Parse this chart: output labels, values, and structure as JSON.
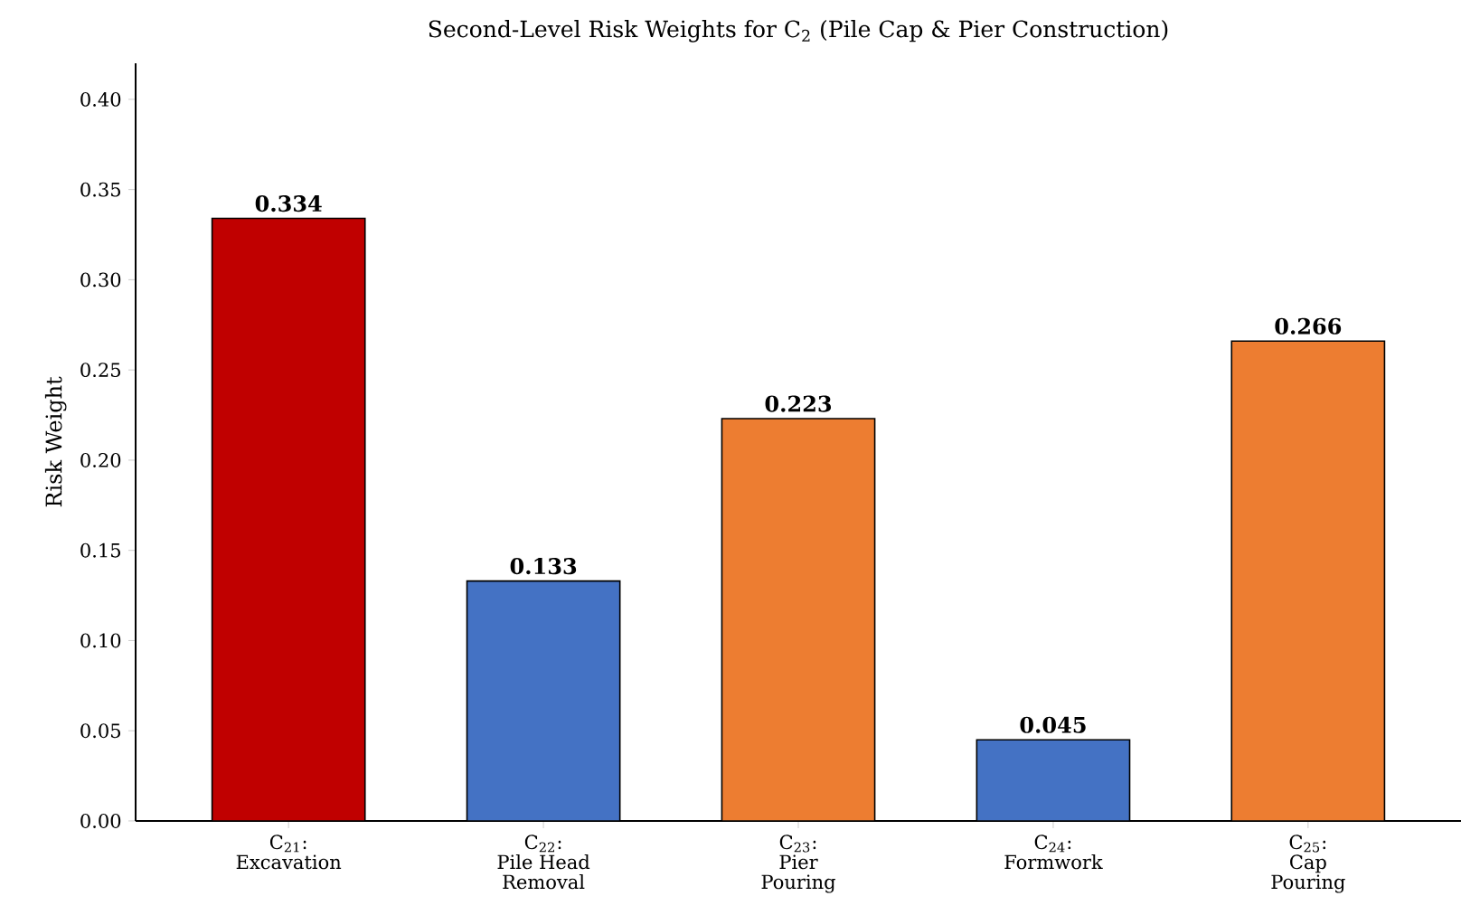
{
  "chart_data": {
    "type": "bar",
    "title": "Second-Level Risk Weights for C$_{2}$ (Pile Cap & Pier Construction)",
    "ylabel": "Risk Weight",
    "categories": [
      "C$_{21}$:\nExcavation",
      "C$_{22}$:\nPile Head\nRemoval",
      "C$_{23}$:\nPier\nPouring",
      "C$_{24}$:\nFormwork",
      "C$_{25}$:\nCap\nPouring"
    ],
    "values": [
      0.334,
      0.133,
      0.223,
      0.045,
      0.266
    ],
    "colors": [
      "#c00000",
      "#4472c4",
      "#ed7d31",
      "#4472c4",
      "#ed7d31"
    ],
    "ylim": [
      0,
      0.42
    ],
    "yticks": [
      {
        "value": 0,
        "label": "0.00"
      },
      {
        "value": 0.05,
        "label": "0.05"
      },
      {
        "value": 0.1,
        "label": "0.10"
      },
      {
        "value": 0.15,
        "label": "0.15"
      },
      {
        "value": 0.2,
        "label": "0.20"
      },
      {
        "value": 0.25,
        "label": "0.25"
      },
      {
        "value": 0.3,
        "label": "0.30"
      },
      {
        "value": 0.35,
        "label": "0.35"
      },
      {
        "value": 0.4,
        "label": "0.40"
      }
    ],
    "data_labels": true
  }
}
